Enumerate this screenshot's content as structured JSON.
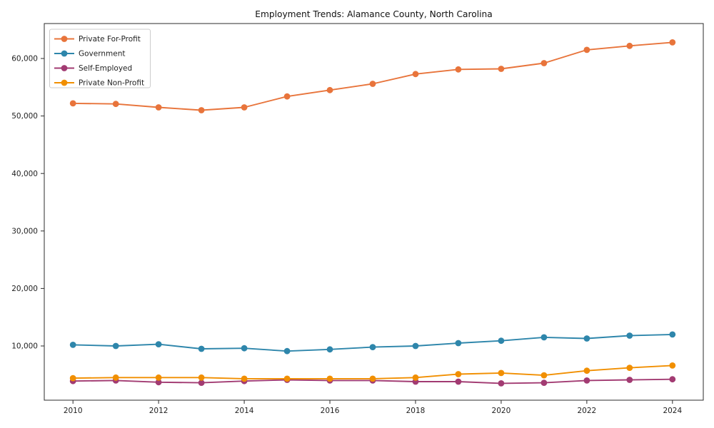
{
  "window": {
    "background": "#ffffff",
    "text_color": "#1f1f1f",
    "spine_color": "#2b2b2b"
  },
  "chart_data": {
    "type": "line",
    "title": "Employment Trends: Alamance County, North Carolina",
    "xlabel": "",
    "ylabel": "",
    "grid": false,
    "legend_position": "upper-left",
    "x": [
      2010,
      2011,
      2012,
      2013,
      2014,
      2015,
      2016,
      2017,
      2018,
      2019,
      2020,
      2021,
      2022,
      2023,
      2024
    ],
    "x_tick_values": [
      2010,
      2012,
      2014,
      2016,
      2018,
      2020,
      2022,
      2024
    ],
    "x_tick_labels": [
      "2010",
      "2012",
      "2014",
      "2016",
      "2018",
      "2020",
      "2022",
      "2024"
    ],
    "y_tick_values": [
      10000,
      20000,
      30000,
      40000,
      50000,
      60000
    ],
    "y_tick_labels": [
      "10,000",
      "20,000",
      "30,000",
      "40,000",
      "50,000",
      "60,000"
    ],
    "xlim": [
      2009.33,
      2024.72
    ],
    "ylim": [
      570,
      66080
    ],
    "series": [
      {
        "name": "Private For-Profit",
        "color": "#E8743B",
        "values": [
          52200,
          52100,
          51500,
          51000,
          51500,
          53400,
          54500,
          55600,
          57300,
          58100,
          58200,
          59200,
          61500,
          62200,
          62800
        ]
      },
      {
        "name": "Government",
        "color": "#2E86AB",
        "values": [
          10200,
          10000,
          10300,
          9500,
          9600,
          9100,
          9400,
          9800,
          10000,
          10500,
          10900,
          11500,
          11300,
          11800,
          12000
        ]
      },
      {
        "name": "Self-Employed",
        "color": "#A23B72",
        "values": [
          3900,
          4000,
          3700,
          3600,
          3900,
          4100,
          4000,
          4000,
          3800,
          3800,
          3500,
          3600,
          4000,
          4100,
          4200
        ]
      },
      {
        "name": "Private Non-Profit",
        "color": "#F18F01",
        "values": [
          4400,
          4500,
          4500,
          4500,
          4300,
          4300,
          4300,
          4300,
          4500,
          5100,
          5300,
          4900,
          5700,
          6200,
          6600
        ]
      }
    ]
  }
}
